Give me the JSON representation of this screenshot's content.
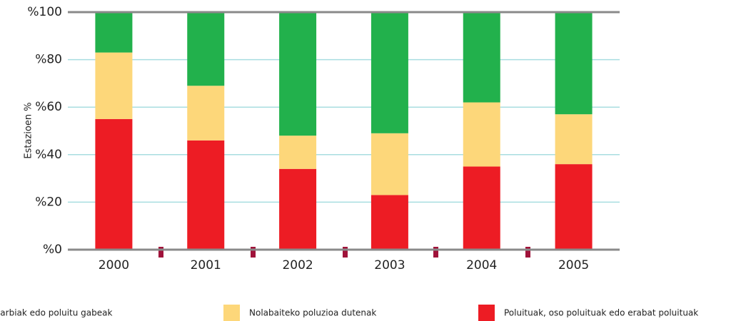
{
  "chart_data": {
    "type": "stacked_bar",
    "y_label": "Estazioen %",
    "categories": [
      "2000",
      "2001",
      "2002",
      "2003",
      "2004",
      "2005"
    ],
    "series": [
      {
        "name": "Garbiak edo poluitu gabeak",
        "color": "#22b14c",
        "values": [
          17,
          31,
          52,
          51,
          38,
          43
        ]
      },
      {
        "name": "Nolabaiteko poluzioa dutenak",
        "color": "#fdd77a",
        "values": [
          28,
          23,
          14,
          26,
          27,
          21
        ]
      },
      {
        "name": "Poluituak, oso poluituak edo erabat poluituak",
        "color": "#ed1c24",
        "values": [
          55,
          46,
          34,
          23,
          35,
          36
        ]
      }
    ],
    "stack_order": "bottom_last",
    "ylim": [
      0,
      100
    ],
    "yticks": [
      {
        "value": 0,
        "label": "%0"
      },
      {
        "value": 20,
        "label": "%20"
      },
      {
        "value": 40,
        "label": "%40"
      },
      {
        "value": 60,
        "label": "%60"
      },
      {
        "value": 80,
        "label": "%80"
      },
      {
        "value": 100,
        "label": "%100"
      }
    ],
    "grid": true
  }
}
